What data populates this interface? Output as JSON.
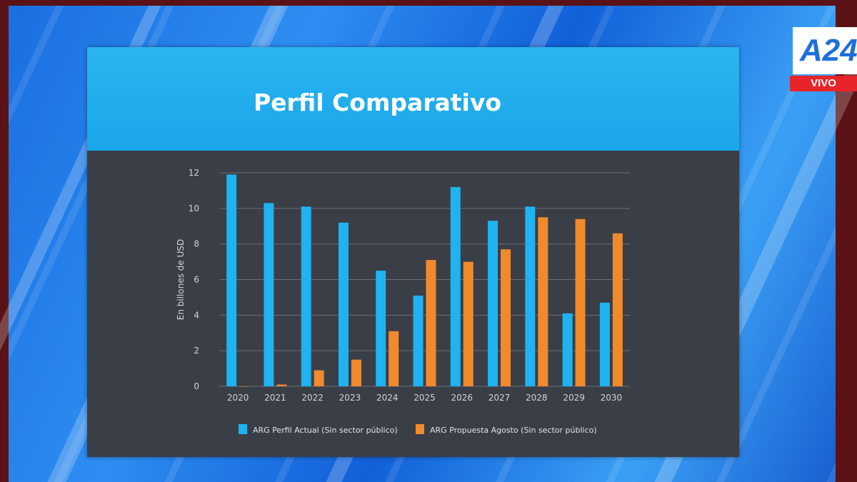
{
  "broadcast": {
    "logo_text": "A24",
    "live_label": "VIVO"
  },
  "colors": {
    "series1": "#1fb3f0",
    "series2": "#f08a2c",
    "title_bar": "#1aa6ea",
    "plot_bg": "#3a3e46"
  },
  "chart_data": {
    "type": "bar",
    "title": "Perfil Comparativo",
    "xlabel": "",
    "ylabel": "En billones de USD",
    "ylim": [
      0,
      12
    ],
    "yticks": [
      0,
      2,
      4,
      6,
      8,
      10,
      12
    ],
    "grid": true,
    "legend_position": "bottom",
    "categories": [
      "2020",
      "2021",
      "2022",
      "2023",
      "2024",
      "2025",
      "2026",
      "2027",
      "2028",
      "2029",
      "2030"
    ],
    "series": [
      {
        "name": "ARG Perfil Actual (Sin sector público)",
        "values": [
          11.9,
          10.3,
          10.1,
          9.2,
          6.5,
          5.1,
          11.2,
          9.3,
          10.1,
          4.1,
          4.7
        ]
      },
      {
        "name": "ARG Propuesta Agosto (Sin sector público)",
        "values": [
          0,
          0.1,
          0.9,
          1.5,
          3.1,
          7.1,
          7.0,
          7.7,
          9.5,
          9.4,
          8.6
        ]
      }
    ]
  }
}
